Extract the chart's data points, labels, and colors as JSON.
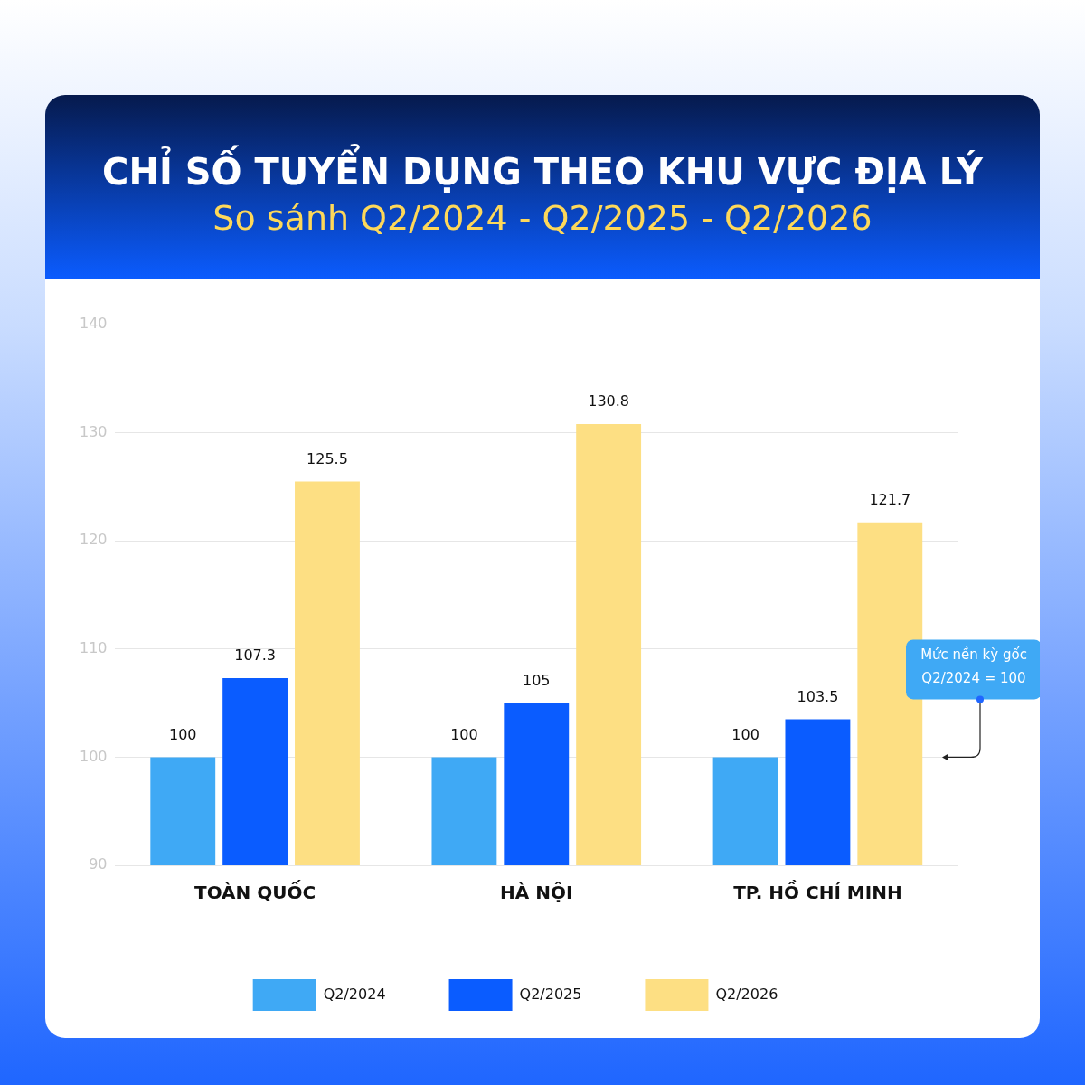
{
  "chart_data": {
    "type": "bar",
    "title": "CHỈ SỐ TUYỂN DỤNG THEO KHU VỰC ĐỊA LÝ",
    "subtitle": "So sánh Q2/2024 - Q2/2025 - Q2/2026",
    "categories": [
      "TOÀN QUỐC",
      "HÀ NỘI",
      "TP. HỒ CHÍ MINH"
    ],
    "series": [
      {
        "name": "Q2/2024",
        "color": "#3fa9f5",
        "values": [
          100,
          100,
          100
        ]
      },
      {
        "name": "Q2/2025",
        "color": "#0a5cff",
        "values": [
          107.3,
          105,
          103.5
        ]
      },
      {
        "name": "Q2/2026",
        "color": "#fddf83",
        "values": [
          125.5,
          130.8,
          121.7
        ]
      }
    ],
    "ylim": [
      90,
      140
    ],
    "yticks": [
      90,
      100,
      110,
      120,
      130,
      140
    ],
    "grid": "y",
    "legend": "bottom",
    "data_labels": true,
    "annotations": [
      "Mức nền kỳ gốc\nQ2/2024 = 100"
    ]
  }
}
